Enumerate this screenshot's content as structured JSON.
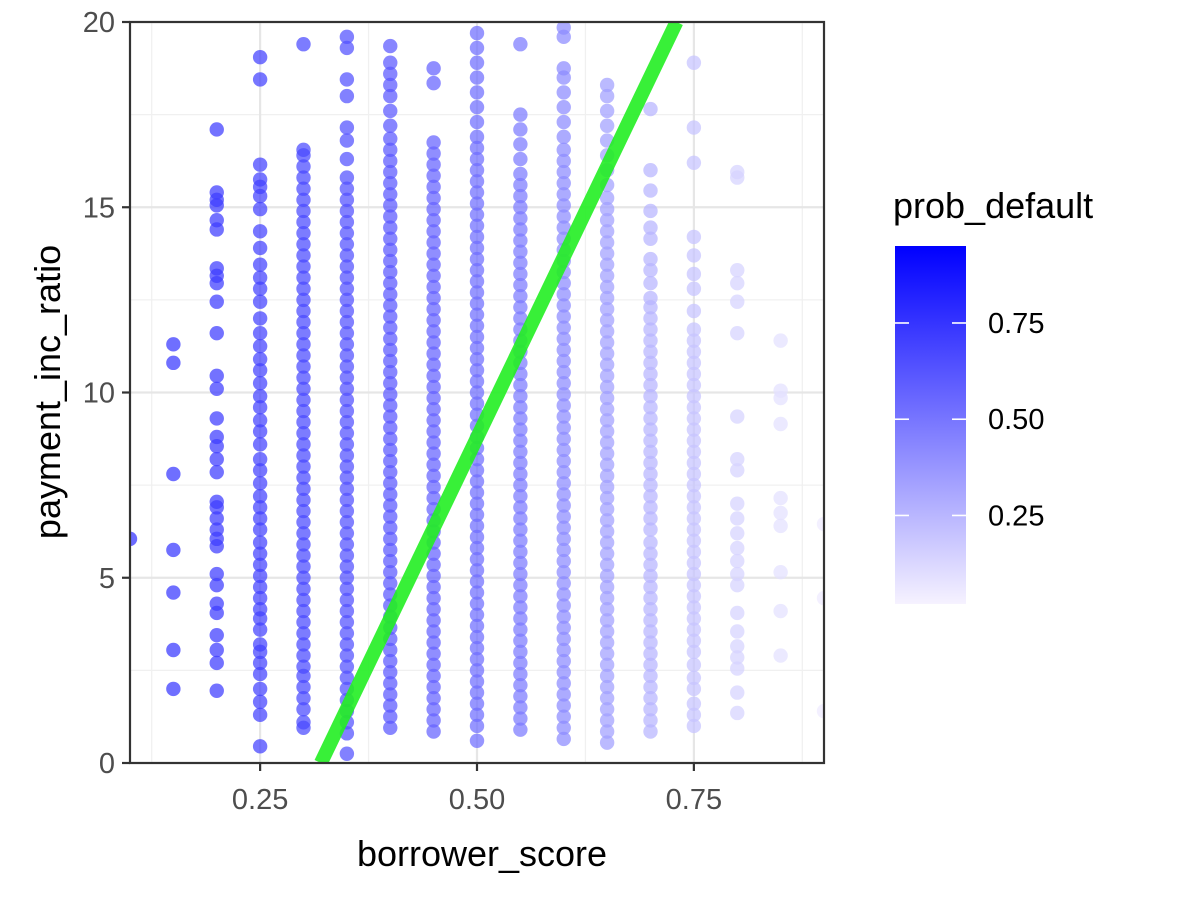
{
  "chart_data": {
    "type": "scatter",
    "xlabel": "borrower_score",
    "ylabel": "payment_inc_ratio",
    "xlim": [
      0.1,
      0.9
    ],
    "ylim": [
      0,
      20
    ],
    "x_ticks": [
      0.25,
      0.5,
      0.75
    ],
    "x_tick_labels": [
      "0.25",
      "0.50",
      "0.75"
    ],
    "y_ticks": [
      0,
      5,
      10,
      15,
      20
    ],
    "y_tick_labels": [
      "0",
      "5",
      "10",
      "15",
      "20"
    ],
    "grid": true,
    "legend": {
      "title": "prob_default",
      "placement": "right",
      "type": "colorbar",
      "range": [
        0.02,
        0.95
      ],
      "ticks": [
        0.25,
        0.5,
        0.75
      ],
      "tick_labels": [
        "0.25",
        "0.50",
        "0.75"
      ],
      "color_low": "#f6f2ff",
      "color_high": "#0000ff"
    },
    "point_base_color": "#7b4cf5",
    "point_opacity": 0.72,
    "line": {
      "color": "#22ee22",
      "points": [
        [
          0.32,
          0
        ],
        [
          0.73,
          20
        ]
      ]
    },
    "columns": [
      {
        "x": 0.1,
        "prob": 0.76,
        "y": [
          6.05
        ]
      },
      {
        "x": 0.15,
        "prob": 0.74,
        "y": [
          2.0,
          3.05,
          4.6,
          5.75,
          7.8,
          10.8,
          11.3
        ]
      },
      {
        "x": 0.2,
        "prob": 0.72,
        "y": [
          1.95,
          2.7,
          3.05,
          3.45,
          4.05,
          4.3,
          4.8,
          5.1,
          5.85,
          6.05,
          6.3,
          6.6,
          6.9,
          7.05,
          7.85,
          8.2,
          8.55,
          8.8,
          9.3,
          10.1,
          10.45,
          11.6,
          12.45,
          12.95,
          13.15,
          13.35,
          14.4,
          14.65,
          15.05,
          15.2,
          15.4,
          17.1
        ]
      },
      {
        "x": 0.25,
        "prob": 0.7,
        "y": [
          0.45,
          1.3,
          1.65,
          2.0,
          2.4,
          2.7,
          3.0,
          3.2,
          3.6,
          3.9,
          4.15,
          4.45,
          4.75,
          5.05,
          5.35,
          5.65,
          5.95,
          6.3,
          6.6,
          6.9,
          7.2,
          7.55,
          7.9,
          8.2,
          8.6,
          8.95,
          9.25,
          9.6,
          9.9,
          10.25,
          10.6,
          10.9,
          11.25,
          11.6,
          12.0,
          12.45,
          12.8,
          13.1,
          13.45,
          13.9,
          14.35,
          14.95,
          15.3,
          15.55,
          15.75,
          16.15,
          18.45,
          19.05
        ]
      },
      {
        "x": 0.3,
        "prob": 0.67,
        "y": [
          0.95,
          1.1,
          1.45,
          1.75,
          2.05,
          2.35,
          2.6,
          2.9,
          3.2,
          3.5,
          3.8,
          4.1,
          4.4,
          4.7,
          5.0,
          5.3,
          5.6,
          5.9,
          6.2,
          6.5,
          6.8,
          7.1,
          7.4,
          7.7,
          8.0,
          8.3,
          8.6,
          8.9,
          9.2,
          9.5,
          9.8,
          10.1,
          10.4,
          10.7,
          11.0,
          11.3,
          11.6,
          11.9,
          12.2,
          12.5,
          12.8,
          13.1,
          13.4,
          13.7,
          14.0,
          14.3,
          14.6,
          14.9,
          15.2,
          15.5,
          15.8,
          16.1,
          16.4,
          16.55,
          19.4
        ]
      },
      {
        "x": 0.35,
        "prob": 0.64,
        "y": [
          0.25,
          0.8,
          1.1,
          1.4,
          1.7,
          2.0,
          2.3,
          2.6,
          2.9,
          3.2,
          3.5,
          3.8,
          4.1,
          4.4,
          4.7,
          5.0,
          5.3,
          5.6,
          5.9,
          6.2,
          6.5,
          6.8,
          7.1,
          7.4,
          7.7,
          8.0,
          8.3,
          8.6,
          8.9,
          9.2,
          9.5,
          9.8,
          10.1,
          10.4,
          10.7,
          11.0,
          11.3,
          11.6,
          11.9,
          12.2,
          12.5,
          12.8,
          13.1,
          13.4,
          13.7,
          14.0,
          14.3,
          14.6,
          14.9,
          15.2,
          15.5,
          15.8,
          16.3,
          16.8,
          17.15,
          18.0,
          18.45,
          19.3,
          19.6
        ]
      },
      {
        "x": 0.4,
        "prob": 0.61,
        "y": [
          0.95,
          1.25,
          1.55,
          1.85,
          2.15,
          2.45,
          2.75,
          3.05,
          3.35,
          3.65,
          3.95,
          4.25,
          4.55,
          4.85,
          5.15,
          5.45,
          5.75,
          6.05,
          6.35,
          6.65,
          6.95,
          7.25,
          7.55,
          7.85,
          8.15,
          8.45,
          8.75,
          9.05,
          9.35,
          9.65,
          9.95,
          10.25,
          10.55,
          10.85,
          11.15,
          11.45,
          11.75,
          12.05,
          12.35,
          12.65,
          12.95,
          13.25,
          13.55,
          13.85,
          14.15,
          14.45,
          14.75,
          15.05,
          15.35,
          15.65,
          15.95,
          16.25,
          16.55,
          16.85,
          17.2,
          17.6,
          18.0,
          18.3,
          18.6,
          18.9,
          19.35
        ]
      },
      {
        "x": 0.45,
        "prob": 0.57,
        "y": [
          0.85,
          1.15,
          1.45,
          1.75,
          2.05,
          2.35,
          2.65,
          2.95,
          3.25,
          3.55,
          3.85,
          4.15,
          4.45,
          4.75,
          5.05,
          5.35,
          5.65,
          5.95,
          6.25,
          6.55,
          6.85,
          7.15,
          7.45,
          7.75,
          8.05,
          8.35,
          8.65,
          8.95,
          9.25,
          9.55,
          9.85,
          10.15,
          10.45,
          10.75,
          11.05,
          11.35,
          11.65,
          11.95,
          12.25,
          12.55,
          12.85,
          13.15,
          13.45,
          13.75,
          14.05,
          14.35,
          14.65,
          14.95,
          15.25,
          15.55,
          15.85,
          16.15,
          16.45,
          16.75,
          18.35,
          18.75
        ]
      },
      {
        "x": 0.5,
        "prob": 0.53,
        "y": [
          0.6,
          1.0,
          1.3,
          1.6,
          1.9,
          2.2,
          2.5,
          2.8,
          3.1,
          3.4,
          3.7,
          4.0,
          4.3,
          4.6,
          4.9,
          5.2,
          5.5,
          5.8,
          6.1,
          6.4,
          6.7,
          7.0,
          7.3,
          7.6,
          7.9,
          8.2,
          8.5,
          8.8,
          9.1,
          9.4,
          9.7,
          10.0,
          10.3,
          10.6,
          10.9,
          11.2,
          11.5,
          11.8,
          12.1,
          12.4,
          12.7,
          13.0,
          13.3,
          13.6,
          13.9,
          14.2,
          14.5,
          14.8,
          15.1,
          15.4,
          15.7,
          16.0,
          16.3,
          16.6,
          16.9,
          17.3,
          17.7,
          18.1,
          18.5,
          18.9,
          19.3,
          19.7
        ]
      },
      {
        "x": 0.55,
        "prob": 0.48,
        "y": [
          0.9,
          1.2,
          1.5,
          1.8,
          2.1,
          2.4,
          2.7,
          3.0,
          3.3,
          3.6,
          3.9,
          4.2,
          4.5,
          4.8,
          5.1,
          5.4,
          5.7,
          6.0,
          6.3,
          6.6,
          6.9,
          7.2,
          7.5,
          7.8,
          8.1,
          8.4,
          8.7,
          9.0,
          9.3,
          9.6,
          9.9,
          10.2,
          10.5,
          10.8,
          11.1,
          11.4,
          11.7,
          12.0,
          12.3,
          12.6,
          12.9,
          13.2,
          13.5,
          13.8,
          14.1,
          14.4,
          14.7,
          15.0,
          15.3,
          15.6,
          15.9,
          16.3,
          16.7,
          17.1,
          17.5,
          19.4
        ]
      },
      {
        "x": 0.6,
        "prob": 0.42,
        "y": [
          0.65,
          0.95,
          1.25,
          1.55,
          1.85,
          2.15,
          2.45,
          2.75,
          3.05,
          3.35,
          3.65,
          3.95,
          4.25,
          4.55,
          4.85,
          5.15,
          5.45,
          5.75,
          6.05,
          6.35,
          6.65,
          6.95,
          7.25,
          7.55,
          7.85,
          8.15,
          8.45,
          8.75,
          9.05,
          9.35,
          9.65,
          9.95,
          10.25,
          10.55,
          10.85,
          11.15,
          11.45,
          11.75,
          12.05,
          12.35,
          12.65,
          12.95,
          13.25,
          13.55,
          13.85,
          14.15,
          14.45,
          14.75,
          15.05,
          15.35,
          15.65,
          15.95,
          16.25,
          16.55,
          16.9,
          17.3,
          17.7,
          18.1,
          18.5,
          18.75,
          19.6,
          19.85
        ]
      },
      {
        "x": 0.65,
        "prob": 0.34,
        "y": [
          0.55,
          0.85,
          1.15,
          1.45,
          1.75,
          2.05,
          2.35,
          2.65,
          2.95,
          3.25,
          3.55,
          3.85,
          4.15,
          4.45,
          4.75,
          5.05,
          5.35,
          5.65,
          5.95,
          6.25,
          6.55,
          6.85,
          7.15,
          7.45,
          7.75,
          8.05,
          8.35,
          8.65,
          8.95,
          9.25,
          9.55,
          9.85,
          10.15,
          10.45,
          10.75,
          11.05,
          11.35,
          11.65,
          11.95,
          12.25,
          12.55,
          12.85,
          13.15,
          13.45,
          13.75,
          14.05,
          14.35,
          14.65,
          14.95,
          15.25,
          15.6,
          16.0,
          16.4,
          16.8,
          17.2,
          17.6,
          18.0,
          18.3
        ]
      },
      {
        "x": 0.7,
        "prob": 0.26,
        "y": [
          0.85,
          1.15,
          1.45,
          1.75,
          2.05,
          2.35,
          2.65,
          2.95,
          3.25,
          3.55,
          3.85,
          4.15,
          4.45,
          4.75,
          5.05,
          5.35,
          5.65,
          5.95,
          6.3,
          6.6,
          6.9,
          7.2,
          7.5,
          7.8,
          8.1,
          8.4,
          8.7,
          9.0,
          9.3,
          9.6,
          9.9,
          10.2,
          10.5,
          10.8,
          11.1,
          11.4,
          11.7,
          12.0,
          12.3,
          12.55,
          12.95,
          13.3,
          13.6,
          14.15,
          14.45,
          14.9,
          15.45,
          16.0,
          17.65
        ]
      },
      {
        "x": 0.75,
        "prob": 0.2,
        "y": [
          1.0,
          1.3,
          1.6,
          2.0,
          2.3,
          2.65,
          3.0,
          3.3,
          3.6,
          3.9,
          4.2,
          4.5,
          4.8,
          5.1,
          5.4,
          5.7,
          6.0,
          6.3,
          6.6,
          6.9,
          7.2,
          7.5,
          7.8,
          8.1,
          8.4,
          8.7,
          9.0,
          9.3,
          9.6,
          9.9,
          10.2,
          10.5,
          10.8,
          11.1,
          11.4,
          11.7,
          12.2,
          12.8,
          13.2,
          13.7,
          14.2,
          16.2,
          17.15,
          18.9
        ]
      },
      {
        "x": 0.8,
        "prob": 0.14,
        "y": [
          1.35,
          1.9,
          2.55,
          2.85,
          3.15,
          3.55,
          4.05,
          4.8,
          5.1,
          5.45,
          5.8,
          6.2,
          6.6,
          7.0,
          7.9,
          8.2,
          9.35,
          11.6,
          12.45,
          12.95,
          13.3,
          15.8,
          15.95
        ]
      },
      {
        "x": 0.85,
        "prob": 0.09,
        "y": [
          2.9,
          4.1,
          5.15,
          6.4,
          6.75,
          7.15,
          9.15,
          9.85,
          10.05,
          11.4
        ]
      },
      {
        "x": 0.9,
        "prob": 0.05,
        "y": [
          1.4,
          4.45,
          6.45
        ]
      }
    ]
  }
}
